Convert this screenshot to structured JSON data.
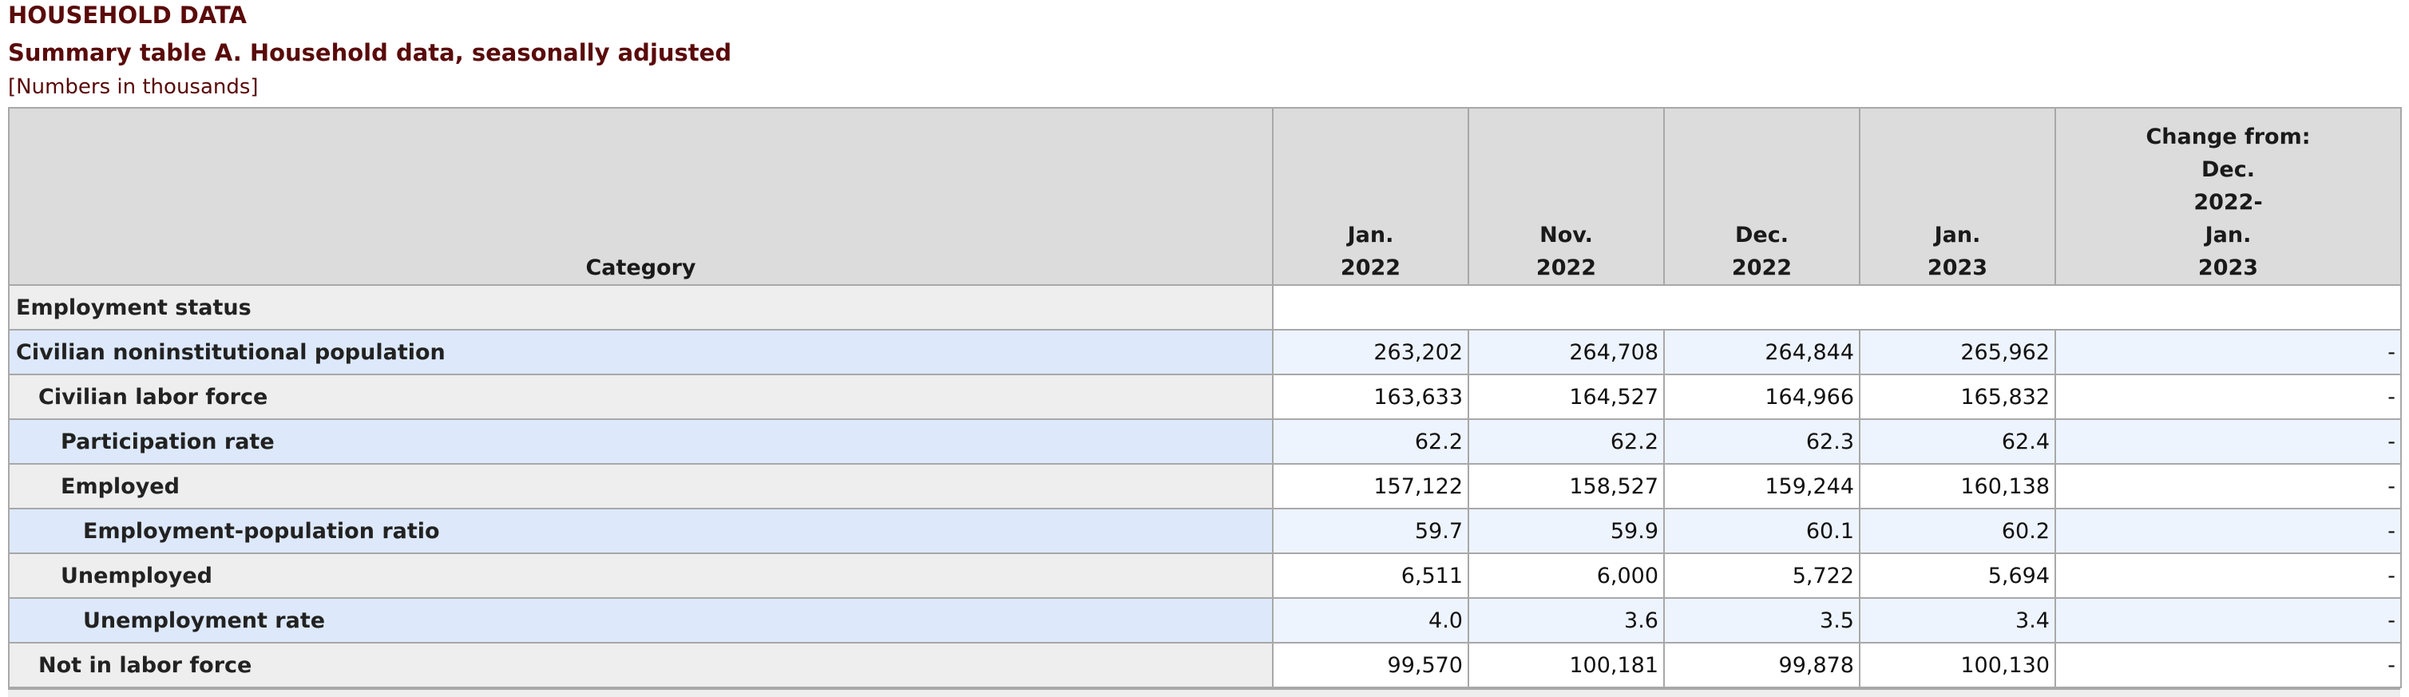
{
  "document": {
    "title": "HOUSEHOLD DATA",
    "table_title": "Summary table A. Household data, seasonally adjusted",
    "units_note": "[Numbers in thousands]"
  },
  "table": {
    "category_header": "Category",
    "columns": [
      {
        "lines": [
          "Jan.",
          "2022"
        ]
      },
      {
        "lines": [
          "Nov.",
          "2022"
        ]
      },
      {
        "lines": [
          "Dec.",
          "2022"
        ]
      },
      {
        "lines": [
          "Jan.",
          "2023"
        ]
      },
      {
        "lines": [
          "Change from:",
          "Dec.",
          "2022-",
          "Jan.",
          "2023"
        ]
      }
    ],
    "section_label": "Employment status",
    "rows": [
      {
        "label": "Civilian noninstitutional population",
        "values": [
          "263,202",
          "264,708",
          "264,844",
          "265,962",
          "-"
        ]
      },
      {
        "label": "Civilian labor force",
        "values": [
          "163,633",
          "164,527",
          "164,966",
          "165,832",
          "-"
        ]
      },
      {
        "label": "Participation rate",
        "values": [
          "62.2",
          "62.2",
          "62.3",
          "62.4",
          "-"
        ]
      },
      {
        "label": "Employed",
        "values": [
          "157,122",
          "158,527",
          "159,244",
          "160,138",
          "-"
        ]
      },
      {
        "label": "Employment-population ratio",
        "values": [
          "59.7",
          "59.9",
          "60.1",
          "60.2",
          "-"
        ]
      },
      {
        "label": "Unemployed",
        "values": [
          "6,511",
          "6,000",
          "5,722",
          "5,694",
          "-"
        ]
      },
      {
        "label": "Unemployment rate",
        "values": [
          "4.0",
          "3.6",
          "3.5",
          "3.4",
          "-"
        ]
      },
      {
        "label": "Not in labor force",
        "values": [
          "99,570",
          "100,181",
          "99,878",
          "100,130",
          "-"
        ]
      }
    ]
  }
}
